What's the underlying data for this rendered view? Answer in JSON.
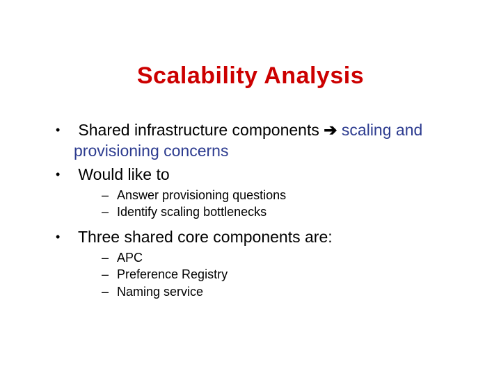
{
  "title": {
    "text": "Scalability Analysis",
    "color": "#cc0000",
    "fontsize_pt": 34
  },
  "body_color": "#000000",
  "link_color": "#2c3b8f",
  "bullets": [
    {
      "segments": [
        {
          "text": "Shared infrastructure components ",
          "color": "#000000"
        },
        {
          "text": "➔",
          "color": "#000000",
          "arrow": true
        },
        {
          "text": " scaling and provisioning concerns",
          "color": "#2c3b8f"
        }
      ]
    },
    {
      "segments": [
        {
          "text": "Would like to",
          "color": "#000000"
        }
      ],
      "children": [
        {
          "text": "Answer provisioning questions"
        },
        {
          "text": "Identify scaling bottlenecks"
        }
      ]
    },
    {
      "segments": [
        {
          "text": "Three shared core components are:",
          "color": "#000000"
        }
      ],
      "children": [
        {
          "text": "APC"
        },
        {
          "text": "Preference Registry"
        },
        {
          "text": "Naming service"
        }
      ]
    }
  ],
  "level1_fontsize_pt": 23,
  "level2_fontsize_pt": 18,
  "background_color": "#ffffff"
}
